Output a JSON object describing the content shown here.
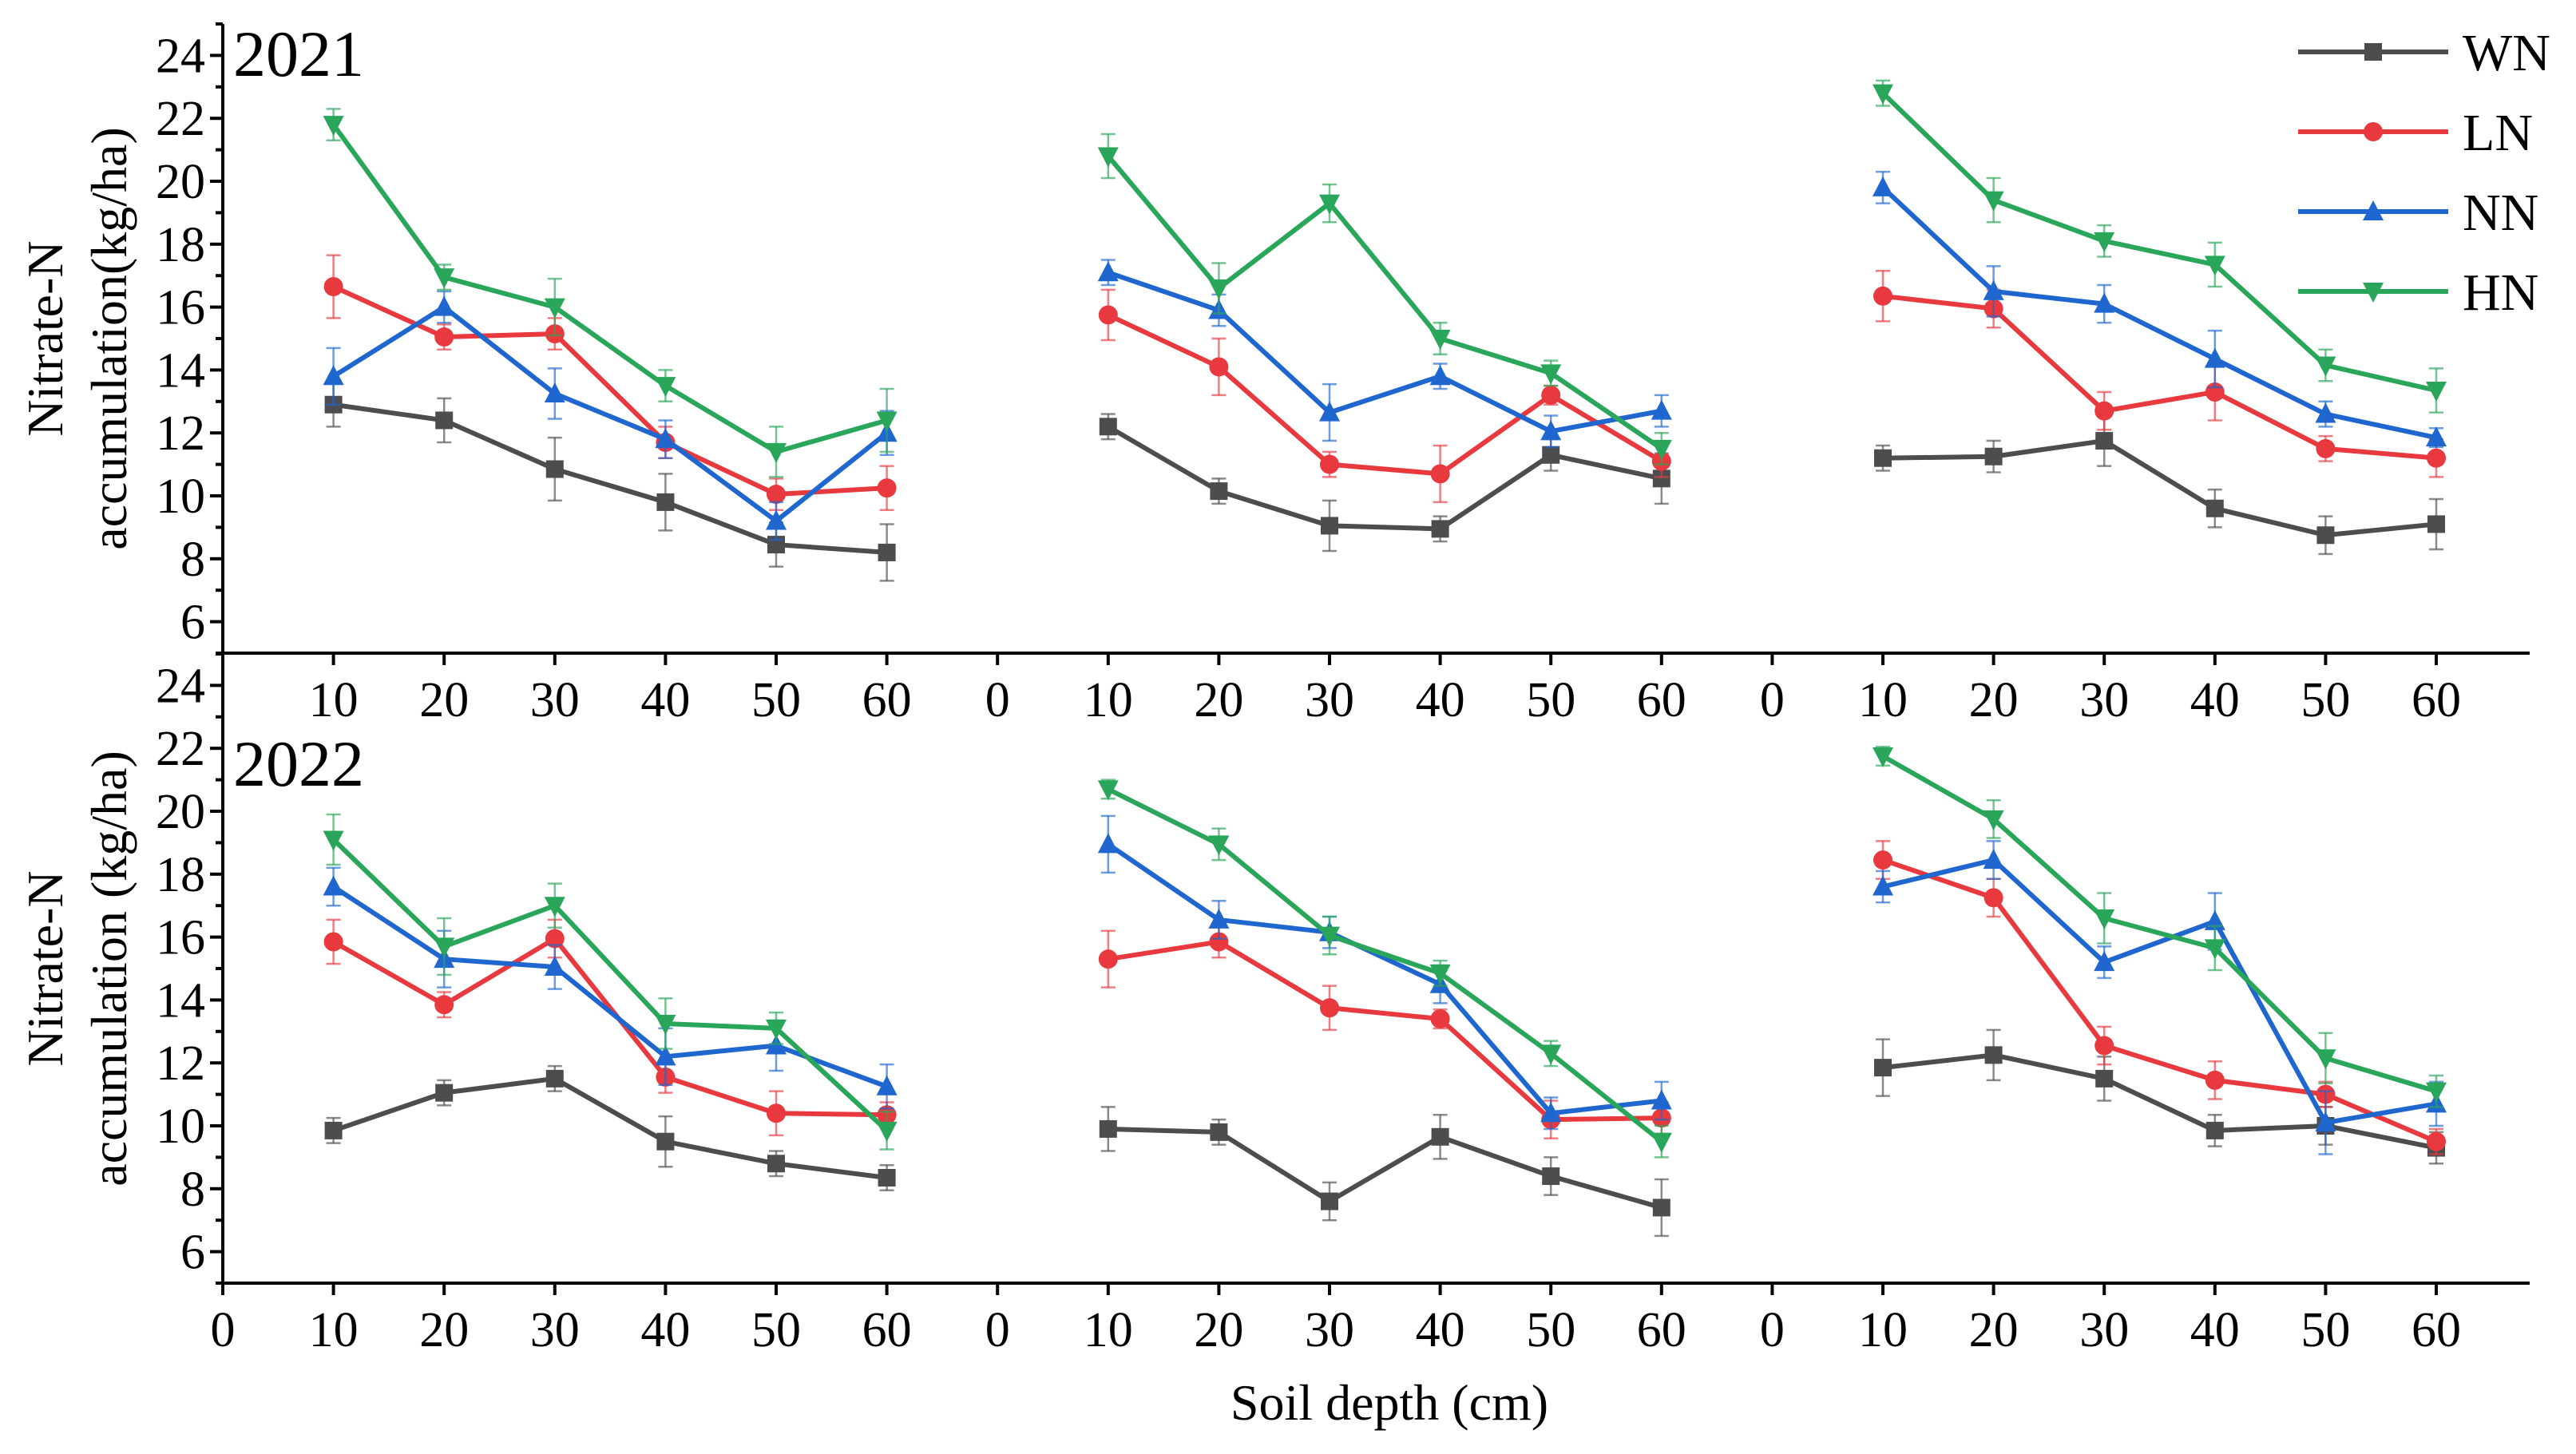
{
  "chart_data": {
    "type": "line",
    "xlabel": "Soil depth (cm)",
    "ylim": [
      5,
      25
    ],
    "yticks": [
      6,
      8,
      10,
      12,
      14,
      16,
      18,
      20,
      22,
      24
    ],
    "x_tick_labels_top": [
      "10",
      "20",
      "30",
      "40",
      "50",
      "60",
      "0",
      "10",
      "20",
      "30",
      "40",
      "50",
      "60",
      "0",
      "10",
      "20",
      "30",
      "40",
      "50",
      "60"
    ],
    "x_tick_labels_bottom": [
      "0",
      "10",
      "20",
      "30",
      "40",
      "50",
      "60",
      "0",
      "10",
      "20",
      "30",
      "40",
      "50",
      "60",
      "0",
      "10",
      "20",
      "30",
      "40",
      "50",
      "60"
    ],
    "depths": [
      10,
      20,
      30,
      40,
      50,
      60
    ],
    "legend": [
      {
        "name": "WN",
        "color": "#4d4d4f",
        "marker": "square"
      },
      {
        "name": "LN",
        "color": "#e8393e",
        "marker": "circle"
      },
      {
        "name": "NN",
        "color": "#1f67cf",
        "marker": "triangle-up"
      },
      {
        "name": "HN",
        "color": "#2aa65a",
        "marker": "triangle-down"
      }
    ],
    "panels": [
      {
        "year": "2021",
        "ylabel_line1": "Nitrate-N",
        "ylabel_line2": "accumulation(kg/ha)",
        "groups": [
          {
            "series": [
              {
                "name": "WN",
                "values": [
                  12.9,
                  12.4,
                  10.85,
                  9.8,
                  8.45,
                  8.2
                ],
                "errors": [
                  0.7,
                  0.7,
                  1.0,
                  0.9,
                  0.7,
                  0.9
                ]
              },
              {
                "name": "LN",
                "values": [
                  16.65,
                  15.05,
                  15.15,
                  11.7,
                  10.05,
                  10.25
                ],
                "errors": [
                  1.0,
                  0.4,
                  0.5,
                  0.5,
                  0.5,
                  0.7
                ]
              },
              {
                "name": "NN",
                "values": [
                  13.8,
                  16.0,
                  13.25,
                  11.8,
                  9.2,
                  12.0
                ],
                "errors": [
                  0.9,
                  0.5,
                  0.8,
                  0.6,
                  0.6,
                  0.7
                ]
              },
              {
                "name": "HN",
                "values": [
                  21.8,
                  16.95,
                  16.0,
                  13.5,
                  11.4,
                  12.4
                ],
                "errors": [
                  0.5,
                  0.4,
                  0.9,
                  0.5,
                  0.8,
                  1.0
                ]
              }
            ]
          },
          {
            "series": [
              {
                "name": "WN",
                "values": [
                  12.2,
                  10.15,
                  9.05,
                  8.95,
                  11.3,
                  10.55
                ],
                "errors": [
                  0.4,
                  0.4,
                  0.8,
                  0.4,
                  0.5,
                  0.8
                ]
              },
              {
                "name": "LN",
                "values": [
                  15.75,
                  14.1,
                  11.0,
                  10.7,
                  13.2,
                  11.1
                ],
                "errors": [
                  0.8,
                  0.9,
                  0.4,
                  0.9,
                  0.3,
                  0.5
                ]
              },
              {
                "name": "NN",
                "values": [
                  17.1,
                  15.9,
                  12.65,
                  13.8,
                  12.05,
                  12.7
                ],
                "errors": [
                  0.4,
                  0.5,
                  0.9,
                  0.4,
                  0.5,
                  0.5
                ]
              },
              {
                "name": "HN",
                "values": [
                  20.8,
                  16.6,
                  19.3,
                  15.0,
                  13.9,
                  11.5
                ],
                "errors": [
                  0.7,
                  0.8,
                  0.6,
                  0.5,
                  0.4,
                  0.5
                ]
              }
            ]
          },
          {
            "series": [
              {
                "name": "WN",
                "values": [
                  11.2,
                  11.25,
                  11.75,
                  9.6,
                  8.75,
                  9.1
                ],
                "errors": [
                  0.4,
                  0.5,
                  0.8,
                  0.6,
                  0.6,
                  0.8
                ]
              },
              {
                "name": "LN",
                "values": [
                  16.35,
                  15.95,
                  12.7,
                  13.3,
                  11.5,
                  11.2
                ],
                "errors": [
                  0.8,
                  0.6,
                  0.6,
                  0.9,
                  0.4,
                  0.6
                ]
              },
              {
                "name": "NN",
                "values": [
                  19.8,
                  16.5,
                  16.1,
                  14.35,
                  12.6,
                  11.85
                ],
                "errors": [
                  0.5,
                  0.8,
                  0.6,
                  0.9,
                  0.4,
                  0.3
                ]
              },
              {
                "name": "HN",
                "values": [
                  22.8,
                  19.4,
                  18.1,
                  17.35,
                  14.15,
                  13.35
                ],
                "errors": [
                  0.4,
                  0.7,
                  0.5,
                  0.7,
                  0.5,
                  0.7
                ]
              }
            ]
          }
        ]
      },
      {
        "year": "2022",
        "ylabel_line1": "Nitrate-N",
        "ylabel_line2": "accumulation (kg/ha)",
        "groups": [
          {
            "series": [
              {
                "name": "WN",
                "values": [
                  9.85,
                  11.05,
                  11.5,
                  9.5,
                  8.8,
                  8.35
                ],
                "errors": [
                  0.4,
                  0.4,
                  0.4,
                  0.8,
                  0.4,
                  0.4
                ]
              },
              {
                "name": "LN",
                "values": [
                  15.85,
                  13.85,
                  15.95,
                  11.55,
                  10.4,
                  10.35
                ],
                "errors": [
                  0.7,
                  0.4,
                  0.6,
                  0.5,
                  0.7,
                  0.4
                ]
              },
              {
                "name": "NN",
                "values": [
                  17.6,
                  15.3,
                  15.05,
                  12.2,
                  12.55,
                  11.25
                ],
                "errors": [
                  0.6,
                  0.9,
                  0.7,
                  0.9,
                  0.8,
                  0.7
                ]
              },
              {
                "name": "HN",
                "values": [
                  19.1,
                  15.7,
                  17.0,
                  13.25,
                  13.1,
                  9.85
                ],
                "errors": [
                  0.8,
                  0.9,
                  0.7,
                  0.8,
                  0.5,
                  0.6
                ]
              }
            ]
          },
          {
            "series": [
              {
                "name": "WN",
                "values": [
                  9.9,
                  9.8,
                  7.6,
                  9.65,
                  8.4,
                  7.4
                ],
                "errors": [
                  0.7,
                  0.4,
                  0.6,
                  0.7,
                  0.6,
                  0.9
                ]
              },
              {
                "name": "LN",
                "values": [
                  15.3,
                  15.85,
                  13.75,
                  13.4,
                  10.2,
                  10.25
                ],
                "errors": [
                  0.9,
                  0.5,
                  0.7,
                  0.3,
                  0.6,
                  0.5
                ]
              },
              {
                "name": "NN",
                "values": [
                  18.95,
                  16.55,
                  16.15,
                  14.5,
                  10.4,
                  10.8
                ],
                "errors": [
                  0.9,
                  0.6,
                  0.5,
                  0.6,
                  0.5,
                  0.6
                ]
              },
              {
                "name": "HN",
                "values": [
                  20.7,
                  18.95,
                  16.05,
                  14.85,
                  12.3,
                  9.5
                ],
                "errors": [
                  0.3,
                  0.5,
                  0.6,
                  0.4,
                  0.4,
                  0.5
                ]
              }
            ]
          },
          {
            "series": [
              {
                "name": "WN",
                "values": [
                  11.85,
                  12.25,
                  11.5,
                  9.85,
                  10.0,
                  9.3
                ],
                "errors": [
                  0.9,
                  0.8,
                  0.7,
                  0.5,
                  0.6,
                  0.5
                ]
              },
              {
                "name": "LN",
                "values": [
                  18.45,
                  17.25,
                  12.55,
                  11.45,
                  11.0,
                  9.5
                ],
                "errors": [
                  0.6,
                  0.6,
                  0.6,
                  0.6,
                  0.4,
                  0.4
                ]
              },
              {
                "name": "NN",
                "values": [
                  17.6,
                  18.45,
                  15.2,
                  16.5,
                  10.1,
                  10.7
                ],
                "errors": [
                  0.5,
                  0.6,
                  0.5,
                  0.9,
                  1.0,
                  0.7
                ]
              },
              {
                "name": "HN",
                "values": [
                  21.75,
                  19.75,
                  16.6,
                  15.65,
                  12.15,
                  11.1
                ],
                "errors": [
                  0.3,
                  0.6,
                  0.8,
                  0.7,
                  0.8,
                  0.5
                ]
              }
            ]
          }
        ]
      }
    ]
  }
}
